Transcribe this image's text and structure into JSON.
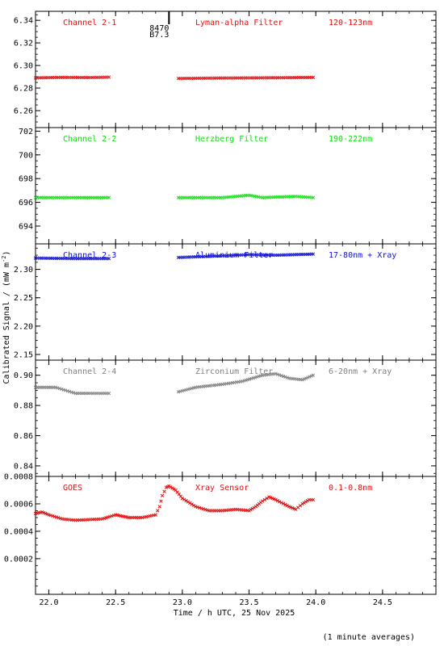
{
  "x_axis_label": "Time / h UTC, 25 Nov 2025",
  "y_axis_label": "Calibrated Signal / (mW m",
  "y_axis_label_sup": "-2",
  "y_axis_label_end": ")",
  "footnote": "(1 minute averages)",
  "marker": {
    "x": 22.9,
    "line1": "8470",
    "line2": "B7.3"
  },
  "chart_data": [
    {
      "type": "scatter",
      "channel": "Channel 2-1",
      "filter": "Lyman-alpha Filter",
      "band": "120-123nm",
      "color": "#e01010",
      "xlim": [
        21.9,
        24.9
      ],
      "ylim": [
        6.245,
        6.348
      ],
      "y_ticks": [
        6.26,
        6.28,
        6.3,
        6.32,
        6.34
      ],
      "y_tick_labels": [
        "6.26",
        "6.28",
        "6.30",
        "6.32",
        "6.34"
      ],
      "segments": [
        {
          "x": [
            21.9,
            22.1,
            22.3,
            22.45
          ],
          "y": [
            6.289,
            6.2895,
            6.2893,
            6.2897
          ]
        },
        {
          "x": [
            22.97,
            23.2,
            23.5,
            23.8,
            23.98
          ],
          "y": [
            6.2885,
            6.2888,
            6.289,
            6.2892,
            6.2895
          ]
        }
      ]
    },
    {
      "type": "scatter",
      "channel": "Channel 2-2",
      "filter": "Herzberg Filter",
      "band": "190-222nm",
      "color": "#10e010",
      "xlim": [
        21.9,
        24.9
      ],
      "ylim": [
        692.5,
        702.3
      ],
      "y_ticks": [
        694,
        696,
        698,
        700,
        702
      ],
      "y_tick_labels": [
        "694",
        "696",
        "698",
        "700",
        "702"
      ],
      "segments": [
        {
          "x": [
            21.9,
            22.2,
            22.45
          ],
          "y": [
            696.4,
            696.4,
            696.4
          ]
        },
        {
          "x": [
            22.97,
            23.3,
            23.5,
            23.6,
            23.85,
            23.98
          ],
          "y": [
            696.4,
            696.4,
            696.6,
            696.4,
            696.5,
            696.4
          ]
        }
      ]
    },
    {
      "type": "scatter",
      "channel": "Channel 2-3",
      "filter": "Aluminium Filter",
      "band": "17-80nm + Xray",
      "color": "#1010d0",
      "xlim": [
        21.9,
        24.9
      ],
      "ylim": [
        2.14,
        2.345
      ],
      "y_ticks": [
        2.15,
        2.2,
        2.25,
        2.3
      ],
      "y_tick_labels": [
        "2.15",
        "2.20",
        "2.25",
        "2.30"
      ],
      "segments": [
        {
          "x": [
            21.9,
            22.2,
            22.45
          ],
          "y": [
            2.32,
            2.319,
            2.319
          ]
        },
        {
          "x": [
            22.97,
            23.2,
            23.5,
            23.7,
            23.98
          ],
          "y": [
            2.321,
            2.323,
            2.326,
            2.325,
            2.327
          ]
        }
      ]
    },
    {
      "type": "scatter",
      "channel": "Channel 2-4",
      "filter": "Zirconium Filter",
      "band": "6-20nm + Xray",
      "color": "#808080",
      "xlim": [
        21.9,
        24.9
      ],
      "ylim": [
        0.833,
        0.91
      ],
      "y_ticks": [
        0.84,
        0.86,
        0.88,
        0.9
      ],
      "y_tick_labels": [
        "0.84",
        "0.86",
        "0.88",
        "0.90"
      ],
      "segments": [
        {
          "x": [
            21.9,
            22.05,
            22.2,
            22.3,
            22.45
          ],
          "y": [
            0.892,
            0.892,
            0.888,
            0.888,
            0.888
          ]
        },
        {
          "x": [
            22.97,
            23.1,
            23.3,
            23.45,
            23.6,
            23.7,
            23.8,
            23.9,
            23.98
          ],
          "y": [
            0.889,
            0.892,
            0.894,
            0.896,
            0.9,
            0.901,
            0.898,
            0.897,
            0.9
          ]
        }
      ]
    },
    {
      "type": "scatter",
      "channel": "GOES",
      "filter": "Xray Sensor",
      "band": "0.1-0.8nm",
      "color": "#e01010",
      "xlim": [
        21.9,
        24.9
      ],
      "ylim": [
        -6e-05,
        0.0008
      ],
      "y_ticks": [
        0.0002,
        0.0004,
        0.0006,
        0.0008
      ],
      "y_tick_labels": [
        "0.0002",
        "0.0004",
        "0.0006",
        "0.0008"
      ],
      "segments": [
        {
          "x": [
            21.9,
            21.95,
            22.0,
            22.1,
            22.2,
            22.3,
            22.4,
            22.5,
            22.55,
            22.6,
            22.7,
            22.8,
            22.83,
            22.85,
            22.88,
            22.9,
            22.95,
            23.0,
            23.1,
            23.2,
            23.3,
            23.4,
            23.5,
            23.55,
            23.6,
            23.65,
            23.7,
            23.8,
            23.85,
            23.9,
            23.95,
            23.98
          ],
          "y": [
            0.00053,
            0.00054,
            0.00052,
            0.00049,
            0.00048,
            0.000485,
            0.00049,
            0.00052,
            0.00051,
            0.0005,
            0.0005,
            0.00052,
            0.00058,
            0.00066,
            0.00072,
            0.00073,
            0.0007,
            0.00064,
            0.00058,
            0.00055,
            0.00055,
            0.00056,
            0.00055,
            0.00058,
            0.00062,
            0.00065,
            0.00063,
            0.00058,
            0.00056,
            0.0006,
            0.00063,
            0.00063
          ]
        }
      ]
    }
  ],
  "x_ticks": [
    22.0,
    22.5,
    23.0,
    23.5,
    24.0,
    24.5
  ],
  "x_tick_labels": [
    "22.0",
    "22.5",
    "23.0",
    "23.5",
    "24.0",
    "24.5"
  ]
}
